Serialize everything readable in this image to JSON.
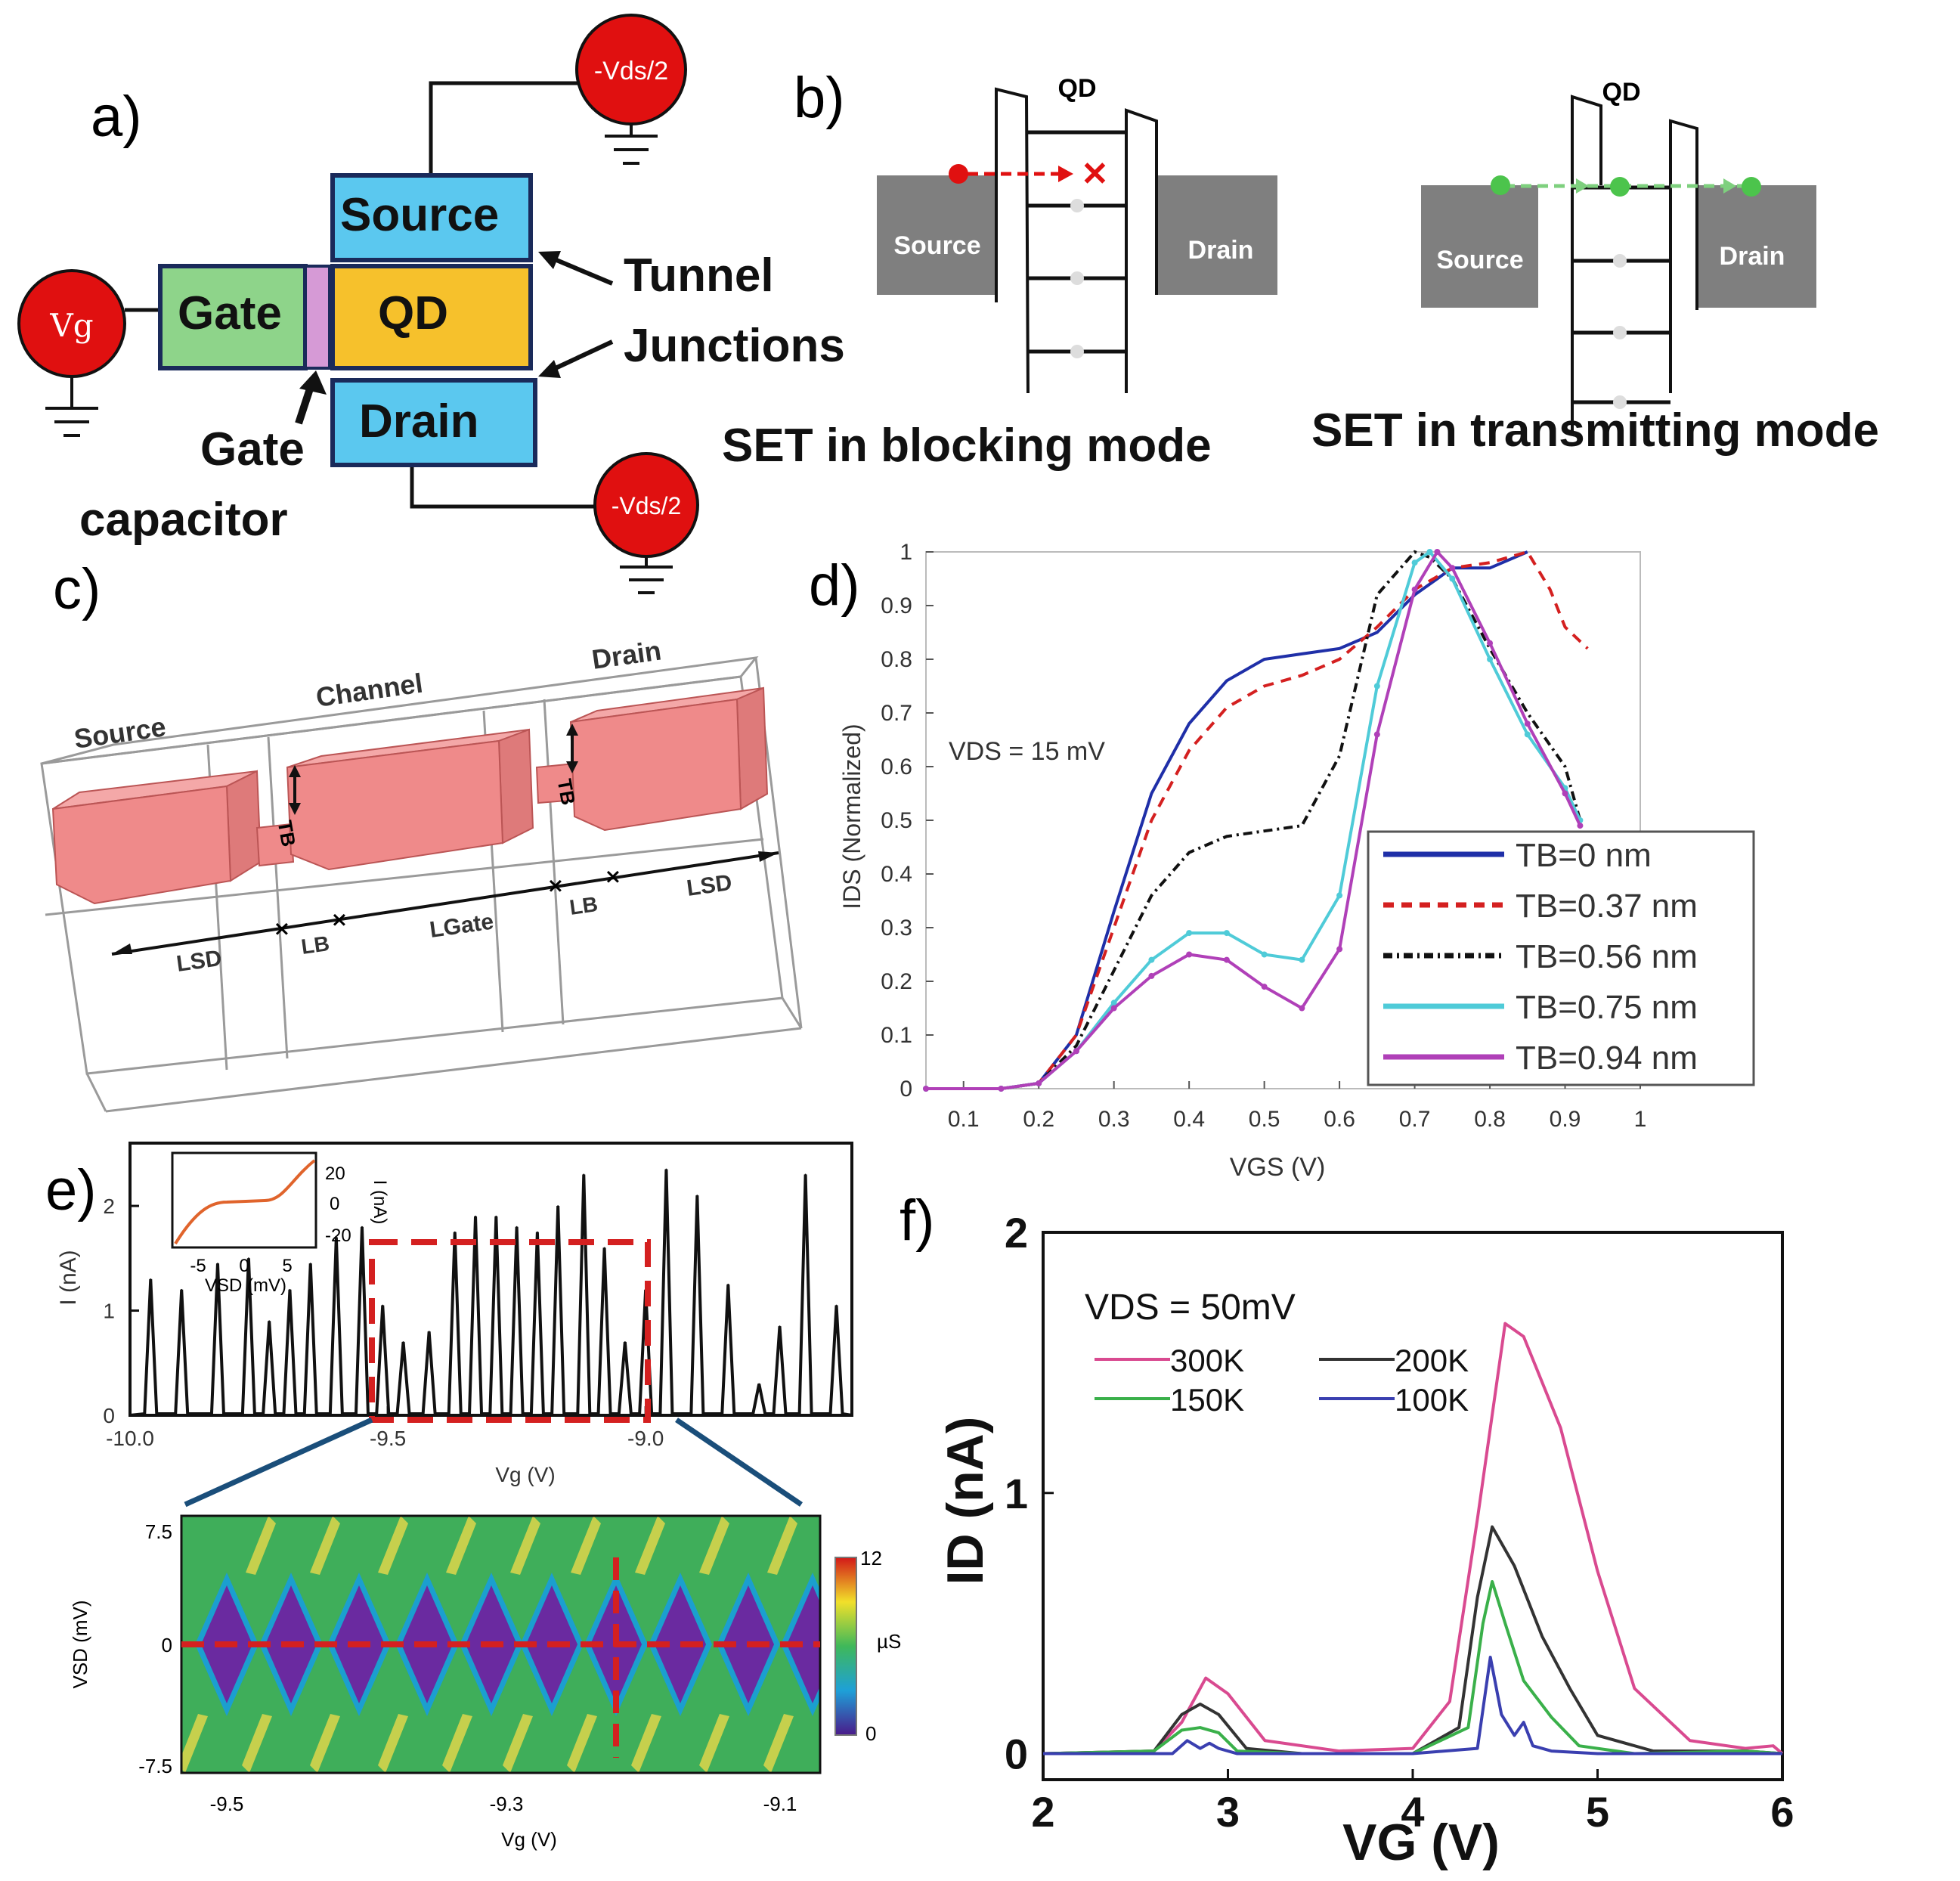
{
  "panel_a": {
    "label": "a)",
    "source": "Source",
    "gate": "Gate",
    "qd": "QD",
    "drain": "Drain",
    "vg": "Vg",
    "vds_top": "-Vds/2",
    "vds_bottom": "-Vds/2",
    "tunnel": "Tunnel",
    "junctions": "Junctions",
    "gate_cap_1": "Gate",
    "gate_cap_2": "capacitor"
  },
  "panel_b": {
    "label": "b)",
    "left": {
      "qd": "QD",
      "source": "Source",
      "drain": "Drain",
      "caption": "SET in blocking mode"
    },
    "right": {
      "qd": "QD",
      "source": "Source",
      "drain": "Drain",
      "caption": "SET in transmitting mode"
    }
  },
  "panel_c": {
    "label": "c)",
    "source": "Source",
    "channel": "Channel",
    "drain": "Drain",
    "lsd_left": "LSD",
    "lb_left": "LB",
    "lgate": "LGate",
    "lb_right": "LB",
    "lsd_right": "LSD",
    "tb_left": "TB",
    "tb_right": "TB"
  },
  "colors": {
    "red_node": "#e01010",
    "source_box": "#5bc8ef",
    "gate_box": "#8ed48a",
    "qd_box": "#f6c12c",
    "gate_cap": "#d69ad6",
    "band_grey": "#7f7f7f",
    "block_pink": "#ef8a8a"
  },
  "chart_data": [
    {
      "panel": "d)",
      "type": "line",
      "xlabel": "VGS (V)",
      "ylabel": "IDS (Normalized)",
      "annotation": "VDS = 15 mV",
      "xlim": [
        0.05,
        1.0
      ],
      "ylim": [
        0,
        1
      ],
      "xticks": [
        0.1,
        0.2,
        0.3,
        0.4,
        0.5,
        0.6,
        0.7,
        0.8,
        0.9,
        1
      ],
      "xtick_labels": [
        "0.1",
        "0.2",
        "0.3",
        "0.4",
        "0.5",
        "0.6",
        "0.7",
        "0.8",
        "0.9",
        "1"
      ],
      "yticks": [
        0,
        0.1,
        0.2,
        0.3,
        0.4,
        0.5,
        0.6,
        0.7,
        0.8,
        0.9,
        1
      ],
      "ytick_labels": [
        "0",
        "0.1",
        "0.2",
        "0.3",
        "0.4",
        "0.5",
        "0.6",
        "0.7",
        "0.8",
        "0.9",
        "1"
      ],
      "series": [
        {
          "name": "TB=0 nm",
          "color": "#1f2fa8",
          "dash": "",
          "x": [
            0.05,
            0.15,
            0.2,
            0.25,
            0.3,
            0.35,
            0.4,
            0.45,
            0.5,
            0.55,
            0.6,
            0.65,
            0.7,
            0.75,
            0.8,
            0.85
          ],
          "y": [
            0,
            0,
            0.01,
            0.1,
            0.33,
            0.55,
            0.68,
            0.76,
            0.8,
            0.81,
            0.82,
            0.85,
            0.92,
            0.97,
            0.97,
            1.0
          ]
        },
        {
          "name": "TB=0.37 nm",
          "color": "#d42020",
          "dash": "14,10",
          "x": [
            0.05,
            0.15,
            0.2,
            0.25,
            0.3,
            0.35,
            0.4,
            0.45,
            0.5,
            0.55,
            0.6,
            0.65,
            0.7,
            0.75,
            0.8,
            0.85,
            0.88,
            0.9,
            0.93
          ],
          "y": [
            0,
            0,
            0.01,
            0.1,
            0.3,
            0.5,
            0.63,
            0.71,
            0.75,
            0.77,
            0.8,
            0.86,
            0.93,
            0.97,
            0.98,
            1.0,
            0.93,
            0.86,
            0.82
          ]
        },
        {
          "name": "TB=0.56 nm",
          "color": "#111111",
          "dash": "12,6,3,6",
          "x": [
            0.05,
            0.15,
            0.2,
            0.25,
            0.3,
            0.35,
            0.4,
            0.45,
            0.5,
            0.55,
            0.6,
            0.65,
            0.7,
            0.72,
            0.75,
            0.8,
            0.85,
            0.9,
            0.92
          ],
          "y": [
            0,
            0,
            0.01,
            0.08,
            0.22,
            0.36,
            0.44,
            0.47,
            0.48,
            0.49,
            0.62,
            0.92,
            1.0,
            0.99,
            0.95,
            0.82,
            0.7,
            0.6,
            0.5
          ]
        },
        {
          "name": "TB=0.75 nm",
          "color": "#4fcbd8",
          "dash": "",
          "x": [
            0.05,
            0.15,
            0.2,
            0.25,
            0.3,
            0.35,
            0.4,
            0.45,
            0.5,
            0.55,
            0.6,
            0.65,
            0.7,
            0.72,
            0.75,
            0.8,
            0.85,
            0.9,
            0.92
          ],
          "y": [
            0,
            0,
            0.01,
            0.07,
            0.16,
            0.24,
            0.29,
            0.29,
            0.25,
            0.24,
            0.36,
            0.75,
            0.98,
            1.0,
            0.95,
            0.8,
            0.66,
            0.56,
            0.5
          ]
        },
        {
          "name": "TB=0.94 nm",
          "color": "#b040b8",
          "dash": "",
          "x": [
            0.05,
            0.15,
            0.2,
            0.25,
            0.3,
            0.35,
            0.4,
            0.45,
            0.5,
            0.55,
            0.6,
            0.65,
            0.7,
            0.73,
            0.75,
            0.8,
            0.85,
            0.9,
            0.92
          ],
          "y": [
            0,
            0,
            0.01,
            0.07,
            0.15,
            0.21,
            0.25,
            0.24,
            0.19,
            0.15,
            0.26,
            0.66,
            0.93,
            1.0,
            0.97,
            0.83,
            0.68,
            0.55,
            0.49
          ]
        }
      ],
      "legend": [
        "TB=0 nm",
        "TB=0.37 nm",
        "TB=0.56 nm",
        "TB=0.75 nm",
        "TB=0.94 nm"
      ]
    },
    {
      "panel": "e)",
      "type": "line",
      "xlabel": "Vg (V)",
      "ylabel": "I (nA)",
      "xlim": [
        -10.0,
        -8.6
      ],
      "ylim": [
        0,
        2.6
      ],
      "xticks": [
        -10.0,
        -9.5,
        -9.0
      ],
      "xtick_labels": [
        "-10.0",
        "-9.5",
        "-9.0"
      ],
      "yticks": [
        0,
        1,
        2
      ],
      "ytick_labels": [
        "0",
        "1",
        "2"
      ],
      "peaks": [
        {
          "x": -9.96,
          "h": 1.3
        },
        {
          "x": -9.9,
          "h": 1.2
        },
        {
          "x": -9.83,
          "h": 1.45
        },
        {
          "x": -9.77,
          "h": 1.5
        },
        {
          "x": -9.73,
          "h": 0.9
        },
        {
          "x": -9.69,
          "h": 1.2
        },
        {
          "x": -9.65,
          "h": 1.45
        },
        {
          "x": -9.6,
          "h": 1.7
        },
        {
          "x": -9.55,
          "h": 1.8
        },
        {
          "x": -9.51,
          "h": 1.05
        },
        {
          "x": -9.47,
          "h": 0.7
        },
        {
          "x": -9.42,
          "h": 0.8
        },
        {
          "x": -9.37,
          "h": 1.75
        },
        {
          "x": -9.33,
          "h": 1.9
        },
        {
          "x": -9.29,
          "h": 1.9
        },
        {
          "x": -9.25,
          "h": 1.8
        },
        {
          "x": -9.21,
          "h": 1.75
        },
        {
          "x": -9.17,
          "h": 2.0
        },
        {
          "x": -9.12,
          "h": 2.3
        },
        {
          "x": -9.08,
          "h": 1.6
        },
        {
          "x": -9.04,
          "h": 0.7
        },
        {
          "x": -9.0,
          "h": 1.2
        },
        {
          "x": -8.96,
          "h": 2.35
        },
        {
          "x": -8.9,
          "h": 2.1
        },
        {
          "x": -8.84,
          "h": 1.25
        },
        {
          "x": -8.78,
          "h": 0.3
        },
        {
          "x": -8.74,
          "h": 0.85
        },
        {
          "x": -8.69,
          "h": 2.3
        },
        {
          "x": -8.63,
          "h": 1.05
        }
      ],
      "inset": {
        "xlabel": "VSD (mV)",
        "ylabel": "I (nA)",
        "xtick_labels": [
          "-5",
          "0",
          "5"
        ],
        "ytick_labels": [
          "20",
          "0",
          "-20"
        ]
      }
    },
    {
      "panel": "e) map",
      "type": "heatmap",
      "xlabel": "Vg (V)",
      "ylabel": "VSD (mV)",
      "xtick_labels": [
        "-9.5",
        "-9.3",
        "-9.1"
      ],
      "ytick_labels": [
        "7.5",
        "0",
        "-7.5"
      ],
      "colorbar_labels": [
        "12",
        "µS",
        "0"
      ]
    },
    {
      "panel": "f)",
      "type": "line",
      "title": "VDS = 50mV",
      "xlabel": "VG (V)",
      "ylabel": "ID (nA)",
      "xlim": [
        2,
        6
      ],
      "ylim": [
        -0.1,
        2
      ],
      "xticks": [
        2,
        3,
        4,
        5,
        6
      ],
      "xtick_labels": [
        "2",
        "3",
        "4",
        "5",
        "6"
      ],
      "yticks": [
        0,
        1,
        2
      ],
      "ytick_labels": [
        "0",
        "1",
        "2"
      ],
      "series": [
        {
          "name": "300K",
          "color": "#d94a90",
          "x": [
            2.0,
            2.6,
            2.75,
            2.88,
            3.0,
            3.2,
            3.6,
            4.0,
            4.2,
            4.35,
            4.5,
            4.6,
            4.8,
            5.0,
            5.2,
            5.5,
            5.8,
            5.95,
            6.0
          ],
          "y": [
            0,
            0.01,
            0.12,
            0.29,
            0.23,
            0.05,
            0.01,
            0.02,
            0.2,
            0.9,
            1.65,
            1.6,
            1.25,
            0.7,
            0.25,
            0.05,
            0.02,
            0.03,
            0.0
          ]
        },
        {
          "name": "200K",
          "color": "#333333",
          "x": [
            2.0,
            2.6,
            2.75,
            2.85,
            2.95,
            3.1,
            3.4,
            4.0,
            4.25,
            4.35,
            4.43,
            4.55,
            4.7,
            4.85,
            5.0,
            5.3,
            5.8,
            6.0
          ],
          "y": [
            0,
            0.01,
            0.15,
            0.19,
            0.15,
            0.02,
            0.0,
            0.0,
            0.1,
            0.6,
            0.87,
            0.72,
            0.45,
            0.25,
            0.07,
            0.01,
            0.01,
            0.0
          ]
        },
        {
          "name": "150K",
          "color": "#3ab04a",
          "x": [
            2.0,
            2.6,
            2.75,
            2.85,
            2.95,
            3.05,
            3.4,
            4.0,
            4.3,
            4.38,
            4.43,
            4.5,
            4.6,
            4.75,
            4.9,
            5.2,
            5.8,
            6.0
          ],
          "y": [
            0,
            0.01,
            0.09,
            0.1,
            0.08,
            0.01,
            0.0,
            0.0,
            0.1,
            0.5,
            0.66,
            0.5,
            0.28,
            0.14,
            0.03,
            0.0,
            0.01,
            0.0
          ]
        },
        {
          "name": "100K",
          "color": "#3a3fb0",
          "x": [
            2.0,
            2.7,
            2.78,
            2.85,
            2.9,
            2.95,
            3.05,
            4.0,
            4.35,
            4.42,
            4.48,
            4.55,
            4.6,
            4.65,
            4.75,
            5.0,
            6.0
          ],
          "y": [
            0,
            0,
            0.05,
            0.02,
            0.04,
            0.02,
            0.0,
            0.0,
            0.02,
            0.37,
            0.15,
            0.07,
            0.12,
            0.03,
            0.01,
            0.0,
            0.0
          ]
        }
      ],
      "legend": [
        "300K",
        "200K",
        "150K",
        "100K"
      ]
    }
  ]
}
